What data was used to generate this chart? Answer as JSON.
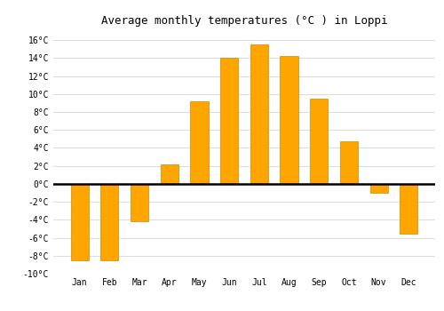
{
  "title": "Average monthly temperatures (°C ) in Loppi",
  "months": [
    "Jan",
    "Feb",
    "Mar",
    "Apr",
    "May",
    "Jun",
    "Jul",
    "Aug",
    "Sep",
    "Oct",
    "Nov",
    "Dec"
  ],
  "values": [
    -8.5,
    -8.5,
    -4.2,
    2.2,
    9.2,
    14.0,
    15.5,
    14.2,
    9.5,
    4.7,
    -1.0,
    -5.5
  ],
  "bar_color": "#FFA500",
  "bar_edge_color": "#cc8800",
  "ylim": [
    -10,
    17
  ],
  "yticks": [
    -10,
    -8,
    -6,
    -4,
    -2,
    0,
    2,
    4,
    6,
    8,
    10,
    12,
    14,
    16
  ],
  "plot_bg_color": "#ffffff",
  "fig_bg_color": "#ffffff",
  "grid_color": "#dddddd",
  "title_fontsize": 9,
  "tick_fontsize": 7,
  "bar_width": 0.6
}
